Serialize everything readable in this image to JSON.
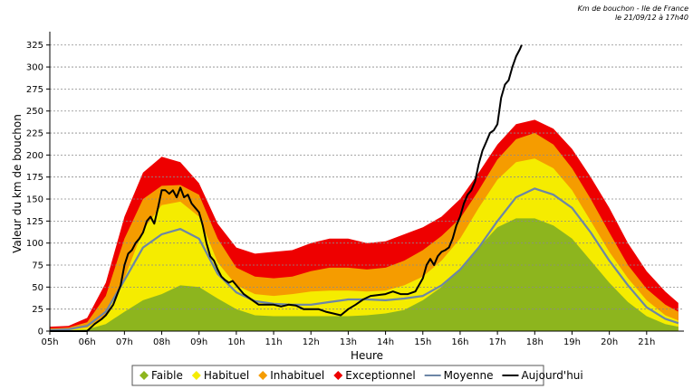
{
  "chart_data": {
    "type": "area",
    "subtitle_line1": "Km de bouchon - Ile de France",
    "subtitle_line2": "le 21/09/12 à 17h40",
    "xlabel": "Heure",
    "ylabel": "Valeur du  km de bouchon",
    "xlim": [
      5,
      22
    ],
    "ylim": [
      0,
      335
    ],
    "yticks": [
      0,
      25,
      50,
      75,
      100,
      125,
      150,
      175,
      200,
      225,
      250,
      275,
      300,
      325
    ],
    "xticks": [
      {
        "hour": 5,
        "label": "05h"
      },
      {
        "hour": 6,
        "label": "06h"
      },
      {
        "hour": 7,
        "label": "07h"
      },
      {
        "hour": 8,
        "label": "08h"
      },
      {
        "hour": 9,
        "label": "09h"
      },
      {
        "hour": 10,
        "label": "10h"
      },
      {
        "hour": 11,
        "label": "11h"
      },
      {
        "hour": 12,
        "label": "12h"
      },
      {
        "hour": 13,
        "label": "13h"
      },
      {
        "hour": 14,
        "label": "14h"
      },
      {
        "hour": 15,
        "label": "15h"
      },
      {
        "hour": 16,
        "label": "16h"
      },
      {
        "hour": 17,
        "label": "17h"
      },
      {
        "hour": 18,
        "label": "18h"
      },
      {
        "hour": 19,
        "label": "19h"
      },
      {
        "hour": 20,
        "label": "20h"
      },
      {
        "hour": 21,
        "label": "21h"
      }
    ],
    "grid": true,
    "legend_position": "bottom",
    "x": [
      5.0,
      5.5,
      6.0,
      6.5,
      7.0,
      7.5,
      8.0,
      8.5,
      9.0,
      9.5,
      10.0,
      10.5,
      11.0,
      11.5,
      12.0,
      12.5,
      13.0,
      13.5,
      14.0,
      14.5,
      15.0,
      15.5,
      16.0,
      16.5,
      17.0,
      17.5,
      18.0,
      18.5,
      19.0,
      19.5,
      20.0,
      20.5,
      21.0,
      21.5,
      21.85
    ],
    "series": [
      {
        "name": "Faible",
        "kind": "band",
        "color": "#8db51e",
        "values": [
          1,
          1,
          2,
          8,
          22,
          35,
          42,
          52,
          50,
          37,
          25,
          18,
          17,
          17,
          17,
          17,
          17,
          18,
          20,
          24,
          35,
          50,
          70,
          95,
          118,
          128,
          128,
          120,
          105,
          80,
          55,
          33,
          17,
          8,
          5
        ]
      },
      {
        "name": "Habituel",
        "kind": "band",
        "color": "#f5ec00",
        "values": [
          1,
          2,
          4,
          18,
          60,
          115,
          143,
          147,
          130,
          78,
          52,
          42,
          40,
          42,
          45,
          46,
          46,
          45,
          46,
          52,
          62,
          80,
          105,
          140,
          172,
          192,
          196,
          185,
          160,
          125,
          90,
          60,
          35,
          18,
          12
        ]
      },
      {
        "name": "Inhabituel",
        "kind": "band",
        "color": "#f59c00",
        "values": [
          3,
          4,
          10,
          40,
          105,
          150,
          165,
          166,
          155,
          105,
          72,
          62,
          60,
          62,
          68,
          72,
          72,
          70,
          72,
          80,
          92,
          108,
          128,
          160,
          195,
          218,
          225,
          212,
          185,
          150,
          112,
          75,
          48,
          30,
          22
        ]
      },
      {
        "name": "Exceptionnel",
        "kind": "band",
        "color": "#ee0000",
        "values": [
          5,
          6,
          15,
          55,
          130,
          180,
          198,
          192,
          168,
          122,
          95,
          88,
          90,
          92,
          100,
          105,
          105,
          100,
          102,
          110,
          118,
          130,
          150,
          180,
          212,
          235,
          240,
          230,
          207,
          175,
          140,
          100,
          68,
          45,
          32
        ]
      },
      {
        "name": "Moyenne",
        "kind": "line",
        "color": "#6c86a6",
        "values": [
          1,
          2,
          6,
          22,
          58,
          95,
          110,
          116,
          105,
          65,
          44,
          34,
          31,
          30,
          30,
          33,
          36,
          36,
          35,
          37,
          40,
          52,
          70,
          95,
          125,
          152,
          162,
          155,
          140,
          112,
          80,
          52,
          27,
          14,
          9
        ]
      },
      {
        "name": "Aujourd'hui",
        "kind": "line",
        "color": "#000000",
        "x": [
          5.0,
          5.5,
          6.0,
          6.2,
          6.4,
          6.5,
          6.7,
          6.9,
          7.0,
          7.1,
          7.2,
          7.3,
          7.4,
          7.5,
          7.6,
          7.7,
          7.8,
          7.9,
          8.0,
          8.1,
          8.2,
          8.3,
          8.4,
          8.5,
          8.6,
          8.7,
          8.8,
          8.9,
          9.0,
          9.1,
          9.2,
          9.3,
          9.4,
          9.5,
          9.6,
          9.7,
          9.8,
          9.9,
          10.0,
          10.2,
          10.4,
          10.6,
          10.8,
          11.0,
          11.2,
          11.4,
          11.6,
          11.8,
          12.0,
          12.2,
          12.4,
          12.6,
          12.8,
          13.0,
          13.2,
          13.4,
          13.6,
          13.8,
          14.0,
          14.2,
          14.4,
          14.6,
          14.8,
          15.0,
          15.1,
          15.2,
          15.3,
          15.4,
          15.5,
          15.6,
          15.7,
          15.8,
          15.9,
          16.0,
          16.1,
          16.2,
          16.3,
          16.4,
          16.5,
          16.6,
          16.7,
          16.8,
          16.9,
          17.0,
          17.1,
          17.2,
          17.3,
          17.4,
          17.5,
          17.6,
          17.65
        ],
        "values": [
          0,
          0,
          0,
          8,
          14,
          18,
          30,
          52,
          75,
          88,
          92,
          100,
          105,
          112,
          125,
          130,
          122,
          140,
          160,
          160,
          156,
          160,
          152,
          163,
          152,
          155,
          145,
          140,
          135,
          120,
          100,
          85,
          80,
          70,
          62,
          58,
          55,
          57,
          52,
          42,
          36,
          30,
          30,
          30,
          28,
          30,
          29,
          25,
          25,
          25,
          22,
          20,
          18,
          25,
          30,
          36,
          40,
          41,
          42,
          45,
          42,
          42,
          45,
          60,
          75,
          82,
          75,
          85,
          90,
          92,
          95,
          105,
          120,
          130,
          145,
          155,
          160,
          170,
          190,
          205,
          215,
          225,
          228,
          235,
          265,
          280,
          285,
          300,
          312,
          320,
          325
        ]
      }
    ]
  }
}
